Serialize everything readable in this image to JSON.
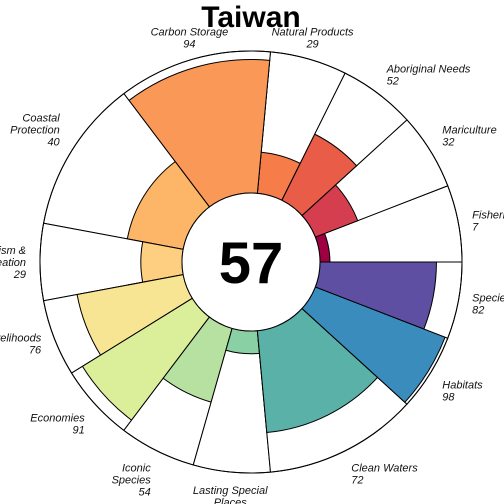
{
  "chart_data": {
    "type": "polar-bar",
    "title": "Taiwan",
    "center_score": "57",
    "max_value": 100,
    "segments": [
      {
        "label": [
          "Fisheries"
        ],
        "value": 7,
        "weight": 1,
        "color": "#9e0142"
      },
      {
        "label": [
          "Mariculture"
        ],
        "value": 32,
        "weight": 1,
        "color": "#d53e4f"
      },
      {
        "label": [
          "Aboriginal Needs"
        ],
        "value": 52,
        "weight": 1,
        "color": "#e95c47"
      },
      {
        "label": [
          "Natural Products"
        ],
        "value": 29,
        "weight": 1,
        "color": "#f67c4a"
      },
      {
        "label": [
          "Carbon Storage"
        ],
        "value": 94,
        "weight": 2,
        "color": "#fa9857"
      },
      {
        "label": [
          "Coastal",
          "Protection"
        ],
        "value": 40,
        "weight": 2,
        "color": "#fdb567"
      },
      {
        "label": [
          "Tourism &",
          "Recreation"
        ],
        "value": 29,
        "weight": 1,
        "color": "#fecf80"
      },
      {
        "label": [
          "Livelihoods"
        ],
        "value": 76,
        "weight": 1,
        "color": "#f8e593"
      },
      {
        "label": [
          "Economies"
        ],
        "value": 91,
        "weight": 1,
        "color": "#dbef9a"
      },
      {
        "label": [
          "Iconic",
          "Species"
        ],
        "value": 54,
        "weight": 1,
        "color": "#b6e1a0"
      },
      {
        "label": [
          "Lasting Special",
          "Places"
        ],
        "value": 16,
        "weight": 1,
        "color": "#89d0a4"
      },
      {
        "label": [
          "Clean Waters"
        ],
        "value": 72,
        "weight": 2,
        "color": "#59b1a8"
      },
      {
        "label": [
          "Habitats"
        ],
        "value": 98,
        "weight": 1,
        "color": "#3a8cbc"
      },
      {
        "label": [
          "Species"
        ],
        "value": 82,
        "weight": 1,
        "color": "#5e4fa2"
      }
    ]
  }
}
